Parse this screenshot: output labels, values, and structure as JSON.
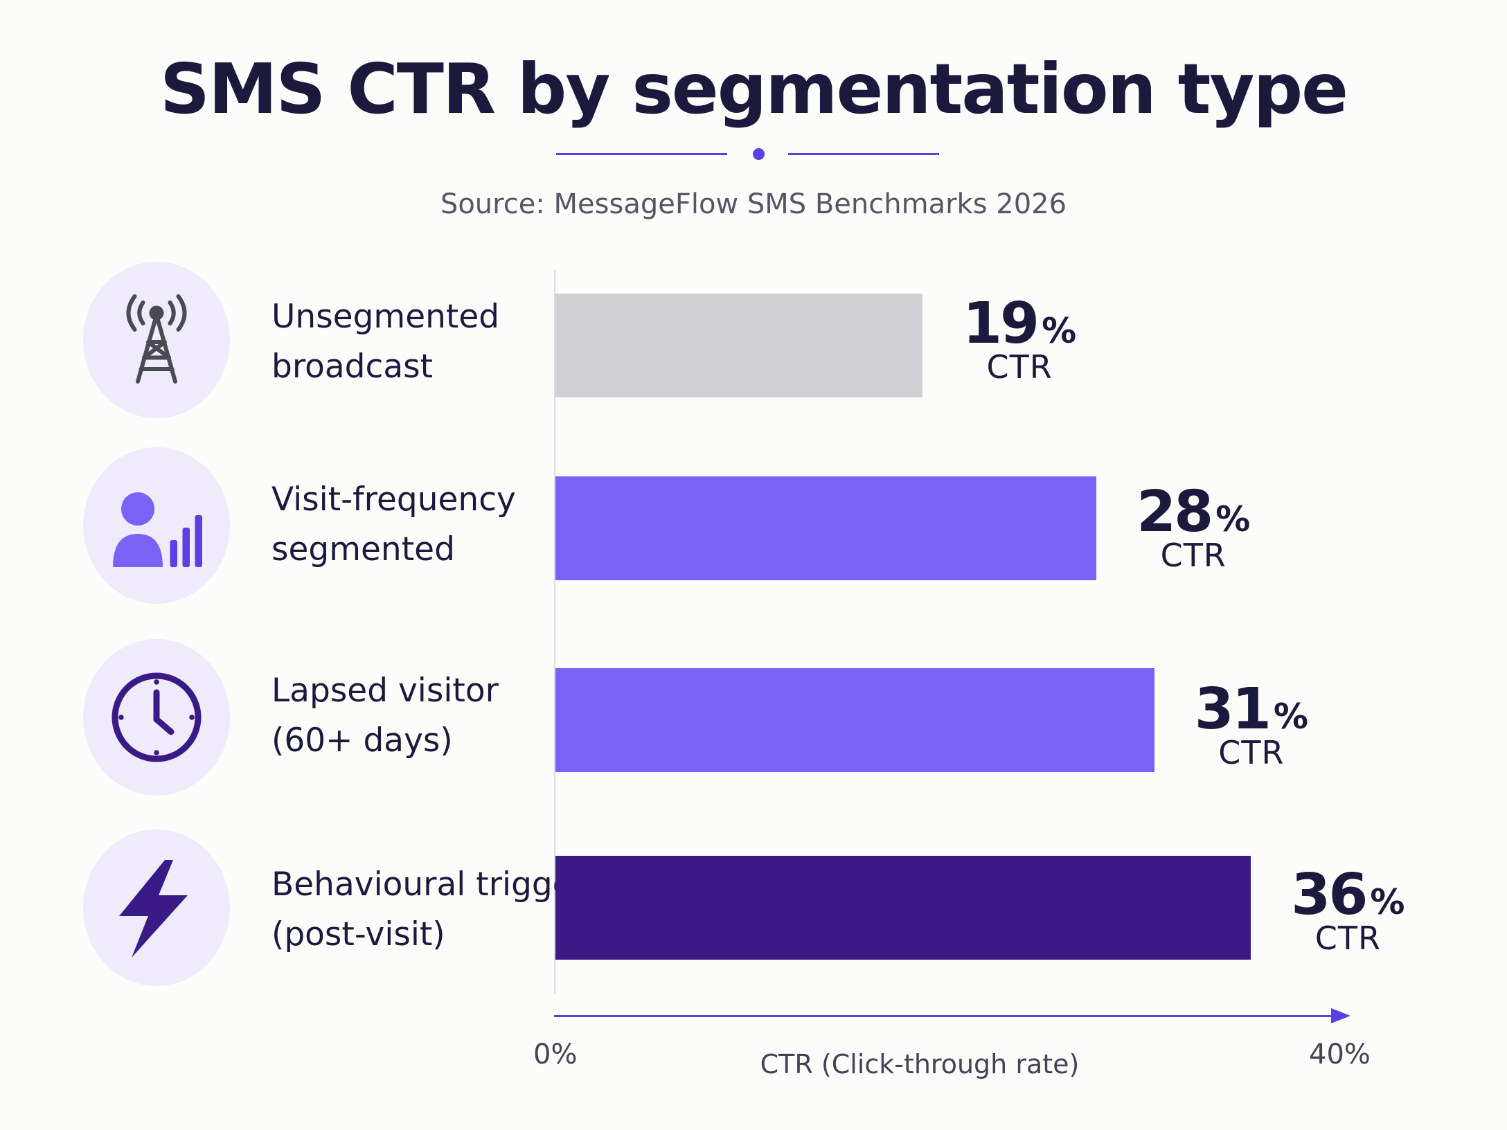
{
  "title": "SMS CTR by segmentation type",
  "source": "Source: MessageFlow SMS Benchmarks 2026",
  "colors": {
    "accent": "#5b3fe0",
    "bar_gray": "#d0d0d4",
    "bar_purple": "#7a62f7",
    "bar_dark": "#3a1a86",
    "icon_bg": "#efebfa",
    "text_dark": "#1b1a3d"
  },
  "chart_data": {
    "type": "bar",
    "orientation": "horizontal",
    "categories": [
      "Unsegmented broadcast",
      "Visit-frequency segmented",
      "Lapsed visitor (60+ days)",
      "Behavioural trigger (post-visit)"
    ],
    "values": [
      19,
      28,
      31,
      36
    ],
    "unit": "%",
    "value_suffix": "CTR",
    "xlabel": "CTR (Click-through rate)",
    "xlim": [
      0,
      40
    ],
    "x_ticks": [
      "0%",
      "40%"
    ],
    "grid": false
  },
  "rows": [
    {
      "line1": "Unsegmented",
      "line2": "broadcast",
      "value": "19",
      "pct": "%",
      "ctr": "CTR",
      "icon": "broadcast-tower-icon",
      "color": "#d0d0d4"
    },
    {
      "line1": "Visit-frequency",
      "line2": "segmented",
      "value": "28",
      "pct": "%",
      "ctr": "CTR",
      "icon": "user-signal-icon",
      "color": "#7a62f7"
    },
    {
      "line1": "Lapsed visitor",
      "line2": "(60+ days)",
      "value": "31",
      "pct": "%",
      "ctr": "CTR",
      "icon": "clock-icon",
      "color": "#7a62f7"
    },
    {
      "line1": "Behavioural trigger",
      "line2": "(post-visit)",
      "value": "36",
      "pct": "%",
      "ctr": "CTR",
      "icon": "lightning-bolt-icon",
      "color": "#3a1a86"
    }
  ],
  "axis": {
    "tick_start": "0%",
    "tick_end": "40%",
    "label": "CTR (Click-through rate)"
  }
}
